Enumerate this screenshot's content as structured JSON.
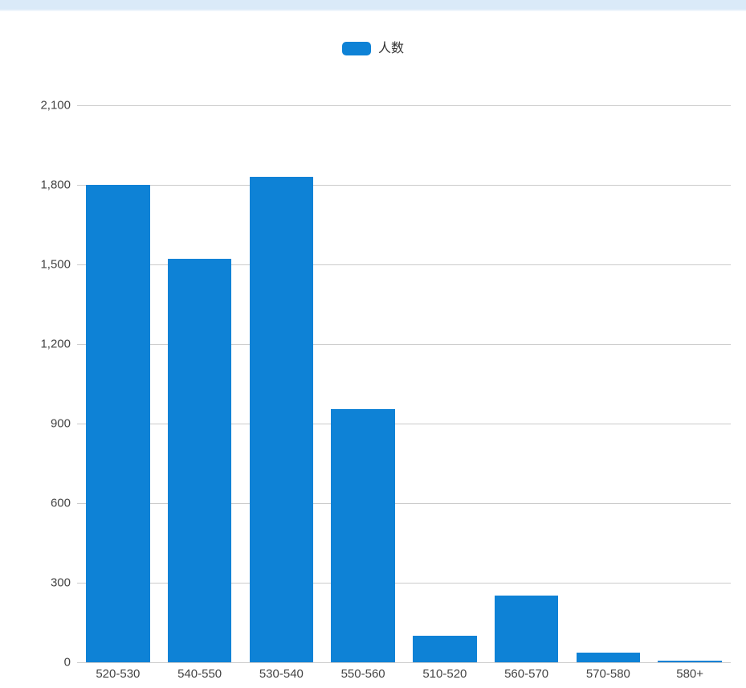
{
  "page": {
    "background": "#ffffff",
    "top_strip_color": "#daeaf8"
  },
  "chart_data": {
    "type": "bar",
    "title": "",
    "xlabel": "",
    "ylabel": "",
    "legend_position": "top",
    "legend_label": "人数",
    "categories": [
      "520-530",
      "540-550",
      "530-540",
      "550-560",
      "510-520",
      "560-570",
      "570-580",
      "580+"
    ],
    "series": [
      {
        "name": "人数",
        "color": "#0e82d6",
        "values": [
          1800,
          1520,
          1830,
          955,
          100,
          250,
          35,
          5
        ]
      }
    ],
    "ylim": [
      0,
      2100
    ],
    "yticks": [
      {
        "value": 0,
        "label": "0"
      },
      {
        "value": 300,
        "label": "300"
      },
      {
        "value": 600,
        "label": "600"
      },
      {
        "value": 900,
        "label": "900"
      },
      {
        "value": 1200,
        "label": "1,200"
      },
      {
        "value": 1500,
        "label": "1,500"
      },
      {
        "value": 1800,
        "label": "1,800"
      },
      {
        "value": 2100,
        "label": "2,100"
      }
    ],
    "grid": true,
    "gridline_color": "#cccccc",
    "axis_label_color": "#444444",
    "bar_width_ratio": 0.78
  }
}
